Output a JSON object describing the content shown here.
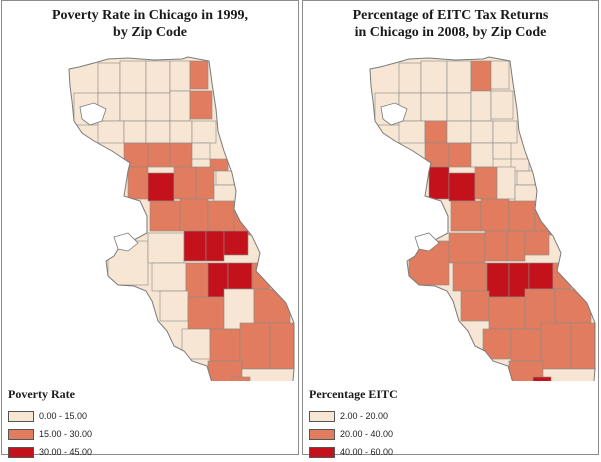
{
  "colors": {
    "low": "#f6e6d3",
    "mid": "#e27c5e",
    "high": "#c4121c",
    "outline": "#8a8a8a",
    "water": "#ffffff"
  },
  "maps": [
    {
      "title_line1": "Poverty Rate in Chicago in 1999,",
      "title_line2": "by Zip Code",
      "legend_title": "Poverty Rate",
      "legend": [
        {
          "label": "0.00 - 15.00",
          "class": "low"
        },
        {
          "label": "15.00 - 30.00",
          "class": "mid"
        },
        {
          "label": "30.00 - 45.00",
          "class": "high"
        }
      ]
    },
    {
      "title_line1": "Percentage of EITC Tax Returns",
      "title_line2": "in Chicago in 2008, by Zip Code",
      "legend_title": "Percentage EITC",
      "legend": [
        {
          "label": "2.00 - 20.00",
          "class": "low"
        },
        {
          "label": "20.00 - 40.00",
          "class": "mid"
        },
        {
          "label": "40.00 - 60.00",
          "class": "high"
        }
      ]
    }
  ]
}
